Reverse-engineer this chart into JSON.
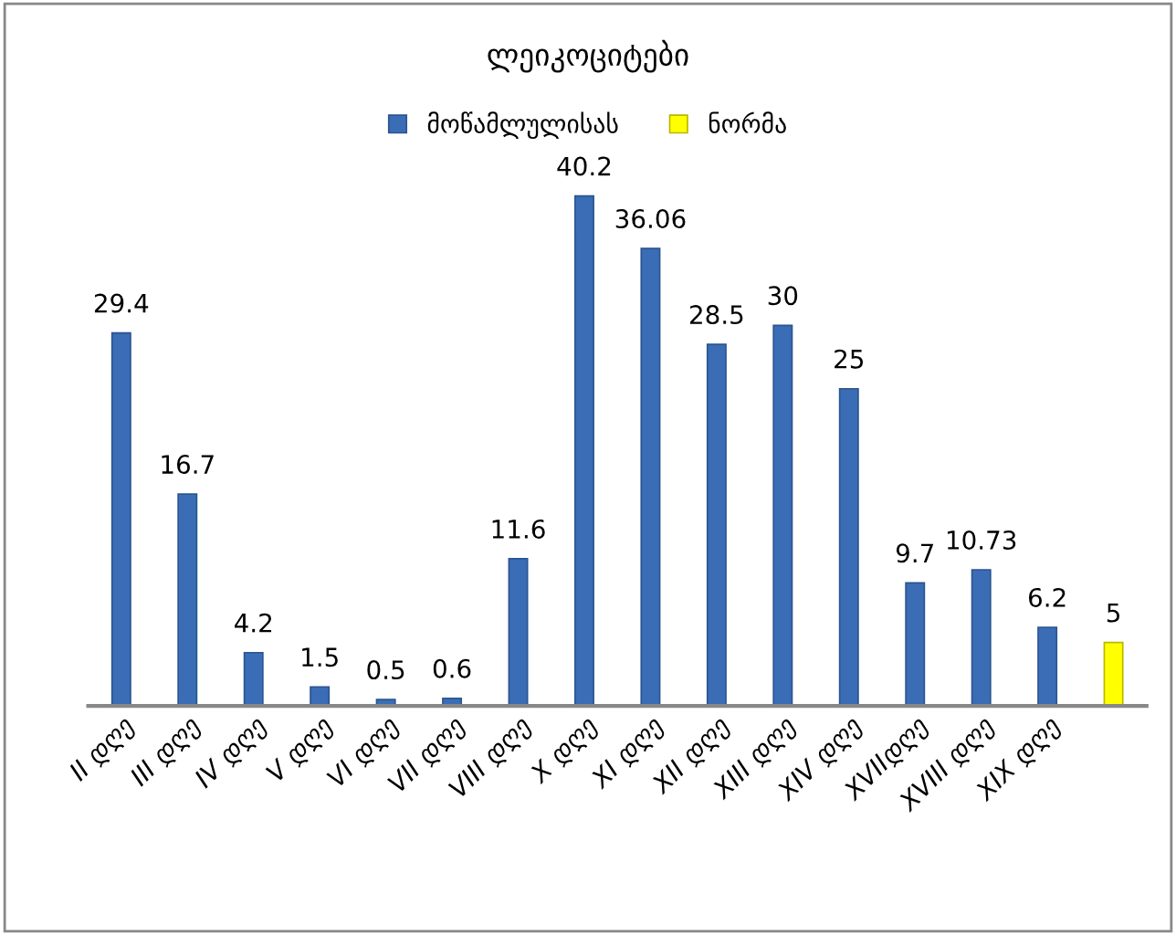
{
  "chart_data": {
    "type": "bar",
    "title": "ლეიკოციტები",
    "categories": [
      "II დღე",
      "III დღე",
      "IV დღე",
      "V დღე",
      "VI დღე",
      "VII დღე",
      "VIII დღე",
      "X დღე",
      "XI დღე",
      "XII დღე",
      "XIII დღე",
      "XIV დღე",
      "XVIIდღე",
      "XVIII დღე",
      "XIX დღე",
      null
    ],
    "series": [
      {
        "name": "მოწამლულისას",
        "color": "#3a6db5",
        "values": [
          29.4,
          16.7,
          4.2,
          1.5,
          0.5,
          0.6,
          11.6,
          40.2,
          36.06,
          28.5,
          30,
          25,
          9.7,
          10.73,
          6.2,
          null
        ]
      },
      {
        "name": "ნორმა",
        "color": "#ffff00",
        "values": [
          null,
          null,
          null,
          null,
          null,
          null,
          null,
          null,
          null,
          null,
          null,
          null,
          null,
          null,
          null,
          5
        ]
      }
    ],
    "data_labels": true,
    "legend": "top",
    "grid": false,
    "tick_labels": "x"
  }
}
